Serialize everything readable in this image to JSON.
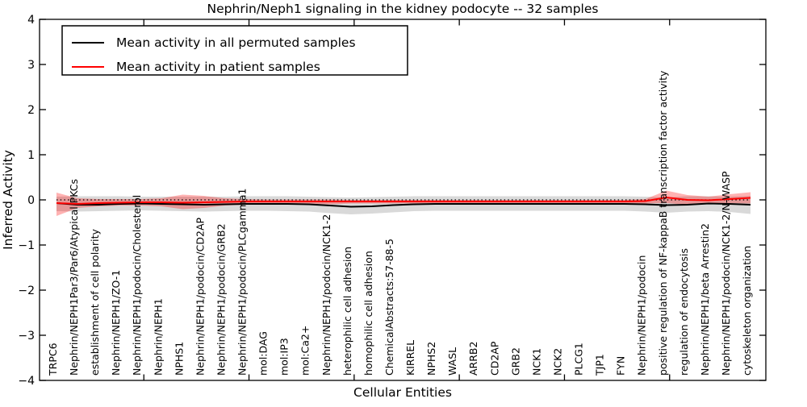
{
  "chart_data": {
    "type": "line",
    "title": "Nephrin/Neph1 signaling in the kidney podocyte -- 32 samples",
    "xlabel": "Cellular Entities",
    "ylabel": "Inferred Activity",
    "ylim": [
      -4,
      4
    ],
    "yticks": [
      4,
      3,
      2,
      1,
      0,
      -1,
      -2,
      -3,
      -4
    ],
    "ytick_labels": [
      "4",
      "3",
      "2",
      "1",
      "0",
      "−1",
      "−2",
      "−3",
      "−4"
    ],
    "grid": false,
    "legend_position": "upper left",
    "zero_reference_line": 0,
    "colors": {
      "permuted_line": "#000000",
      "permuted_band": "rgba(0,0,0,0.15)",
      "patient_line": "#ff0000",
      "patient_band": "rgba(255,0,0,0.30)",
      "zero_line": "#000000",
      "frame": "#000000"
    },
    "categories": [
      "TRPC6",
      "Nephrin/NEPH1Par3/Par6/Atypical PKCs",
      "establishment of cell polarity",
      "Nephrin/NEPH1/ZO-1",
      "Nephrin/NEPH1/podocin/Cholesterol",
      "Nephrin/NEPH1",
      "NPHS1",
      "Nephrin/NEPH1/podocin/CD2AP",
      "Nephrin/NEPH1/podocin/GRB2",
      "Nephrin/NEPH1/podocin/PLCgamma1",
      "mol:DAG",
      "mol:IP3",
      "mol:Ca2+",
      "Nephrin/NEPH1/podocin/NCK1-2",
      "heterophilic cell adhesion",
      "homophilic cell adhesion",
      "ChemicalAbstracts:57-88-5",
      "KIRREL",
      "NPHS2",
      "WASL",
      "ARRB2",
      "CD2AP",
      "GRB2",
      "NCK1",
      "NCK2",
      "PLCG1",
      "TJP1",
      "FYN",
      "Nephrin/NEPH1/podocin",
      "positive regulation of NF-kappaB transcription factor activity",
      "regulation of endocytosis",
      "Nephrin/NEPH1/beta Arrestin2",
      "Nephrin/NEPH1/podocin/NCK1-2/N-WASP",
      "cytoskeleton organization"
    ],
    "series": [
      {
        "name": "Mean activity in all permuted samples",
        "color": "#000000",
        "band_color": "rgba(0,0,0,0.15)",
        "values": [
          -0.071,
          -0.107,
          -0.107,
          -0.089,
          -0.08,
          -0.089,
          -0.098,
          -0.107,
          -0.098,
          -0.089,
          -0.089,
          -0.089,
          -0.098,
          -0.125,
          -0.152,
          -0.143,
          -0.116,
          -0.098,
          -0.089,
          -0.089,
          -0.089,
          -0.089,
          -0.089,
          -0.089,
          -0.089,
          -0.089,
          -0.089,
          -0.089,
          -0.098,
          -0.116,
          -0.107,
          -0.08,
          -0.089,
          -0.107
        ],
        "band_upper": [
          0.071,
          0.08,
          0.08,
          0.08,
          0.071,
          0.071,
          0.071,
          0.071,
          0.071,
          0.08,
          0.08,
          0.08,
          0.071,
          0.063,
          0.054,
          0.063,
          0.071,
          0.08,
          0.08,
          0.08,
          0.08,
          0.08,
          0.08,
          0.08,
          0.08,
          0.08,
          0.08,
          0.08,
          0.071,
          0.054,
          0.08,
          0.08,
          0.071,
          0.089
        ],
        "band_lower": [
          -0.25,
          -0.259,
          -0.25,
          -0.241,
          -0.232,
          -0.241,
          -0.25,
          -0.259,
          -0.25,
          -0.241,
          -0.241,
          -0.25,
          -0.259,
          -0.295,
          -0.321,
          -0.304,
          -0.277,
          -0.25,
          -0.241,
          -0.241,
          -0.241,
          -0.241,
          -0.241,
          -0.241,
          -0.241,
          -0.241,
          -0.241,
          -0.241,
          -0.259,
          -0.286,
          -0.259,
          -0.25,
          -0.268,
          -0.313
        ]
      },
      {
        "name": "Mean activity in patient samples",
        "color": "#ff0000",
        "band_color": "rgba(255,0,0,0.30)",
        "values": [
          -0.071,
          -0.089,
          -0.071,
          -0.063,
          -0.054,
          -0.054,
          -0.063,
          -0.054,
          -0.045,
          -0.036,
          -0.036,
          -0.036,
          -0.036,
          -0.036,
          -0.036,
          -0.036,
          -0.036,
          -0.036,
          -0.036,
          -0.036,
          -0.036,
          -0.036,
          -0.036,
          -0.036,
          -0.036,
          -0.036,
          -0.036,
          -0.036,
          -0.027,
          0.054,
          0.0,
          -0.009,
          0.018,
          0.045
        ],
        "band_upper": [
          0.161,
          0.036,
          0.018,
          0.018,
          0.018,
          0.036,
          0.116,
          0.089,
          0.036,
          0.018,
          0.009,
          0.009,
          0.009,
          0.009,
          0.0,
          0.0,
          0.0,
          0.0,
          0.0,
          0.0,
          0.0,
          0.0,
          0.0,
          0.0,
          0.0,
          0.0,
          0.0,
          0.0,
          0.018,
          0.205,
          0.107,
          0.071,
          0.125,
          0.17
        ],
        "band_lower": [
          -0.357,
          -0.179,
          -0.143,
          -0.125,
          -0.125,
          -0.143,
          -0.205,
          -0.179,
          -0.125,
          -0.107,
          -0.089,
          -0.089,
          -0.089,
          -0.098,
          -0.08,
          -0.08,
          -0.08,
          -0.08,
          -0.08,
          -0.08,
          -0.08,
          -0.08,
          -0.08,
          -0.08,
          -0.08,
          -0.08,
          -0.08,
          -0.08,
          -0.08,
          -0.071,
          -0.107,
          -0.08,
          -0.071,
          -0.08
        ]
      }
    ]
  }
}
